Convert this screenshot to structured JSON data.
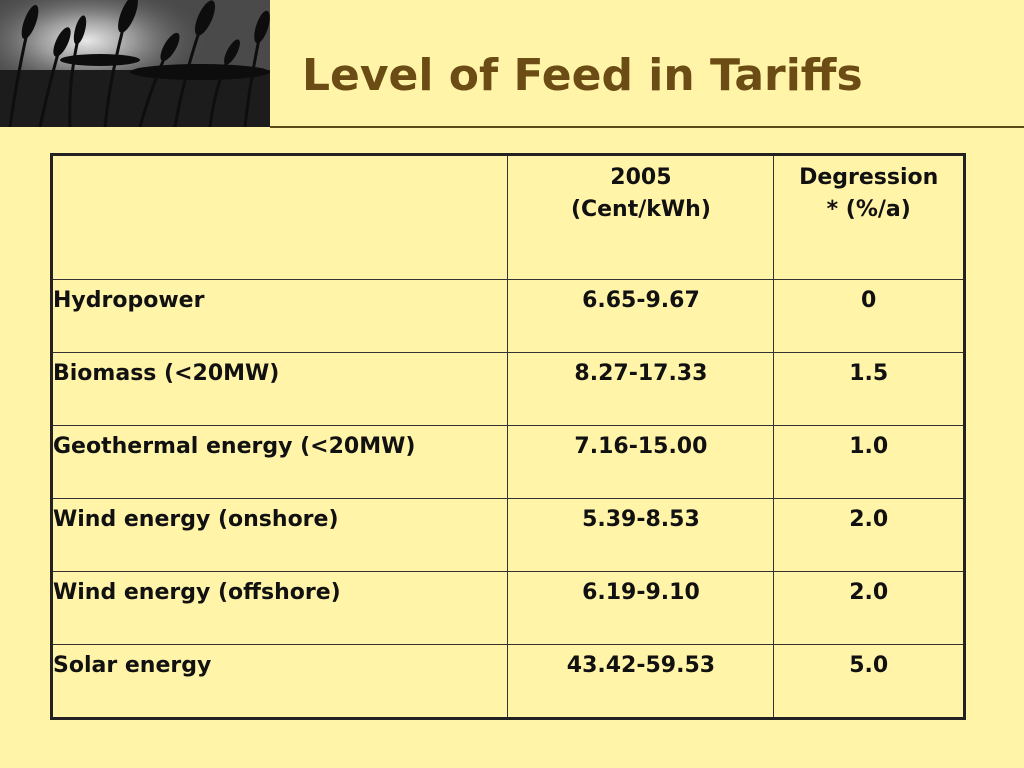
{
  "slide": {
    "title": "Level of Feed in Tariffs"
  },
  "table": {
    "header": {
      "label_col": "",
      "price_col_line1": "2005",
      "price_col_line2": "(Cent/kWh)",
      "degression_col_line1": "Degression",
      "degression_col_line2": "* (%/a)"
    },
    "rows": [
      {
        "label": "Hydropower",
        "price": "6.65-9.67",
        "degression": "0"
      },
      {
        "label": "Biomass (<20MW)",
        "price": "8.27-17.33",
        "degression": "1.5"
      },
      {
        "label": "Geothermal energy (<20MW)",
        "price": "7.16-15.00",
        "degression": "1.0"
      },
      {
        "label": "Wind energy (onshore)",
        "price": "5.39-8.53",
        "degression": "2.0"
      },
      {
        "label": "Wind energy (offshore)",
        "price": "6.19-9.10",
        "degression": "2.0"
      },
      {
        "label": "Solar energy",
        "price": "43.42-59.53",
        "degression": "5.0"
      }
    ]
  },
  "colors": {
    "background": "#fff4a8",
    "title": "#6b4c14",
    "table_text": "#111111"
  },
  "decoration": {
    "header_image": "wheat-field-photo"
  }
}
